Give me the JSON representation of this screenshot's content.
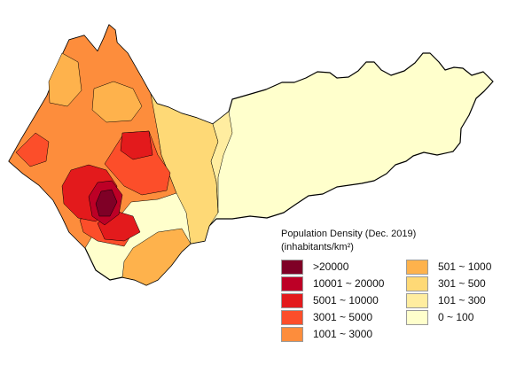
{
  "legend": {
    "title": "Population Density (Dec. 2019)",
    "unit": "(inhabitants/km²)",
    "classes": [
      {
        "label": ">20000",
        "color": "#7f0026"
      },
      {
        "label": "10001 ~ 20000",
        "color": "#bd0026"
      },
      {
        "label": "5001 ~ 10000",
        "color": "#e31a1c"
      },
      {
        "label": "3001 ~ 5000",
        "color": "#fc4e2a"
      },
      {
        "label": "1001 ~ 3000",
        "color": "#fd8d3c"
      },
      {
        "label": "501 ~ 1000",
        "color": "#feb24c"
      },
      {
        "label": "301 ~ 500",
        "color": "#fed976"
      },
      {
        "label": "101 ~ 300",
        "color": "#ffeda0"
      },
      {
        "label": "0 ~ 100",
        "color": "#ffffcc"
      }
    ]
  }
}
